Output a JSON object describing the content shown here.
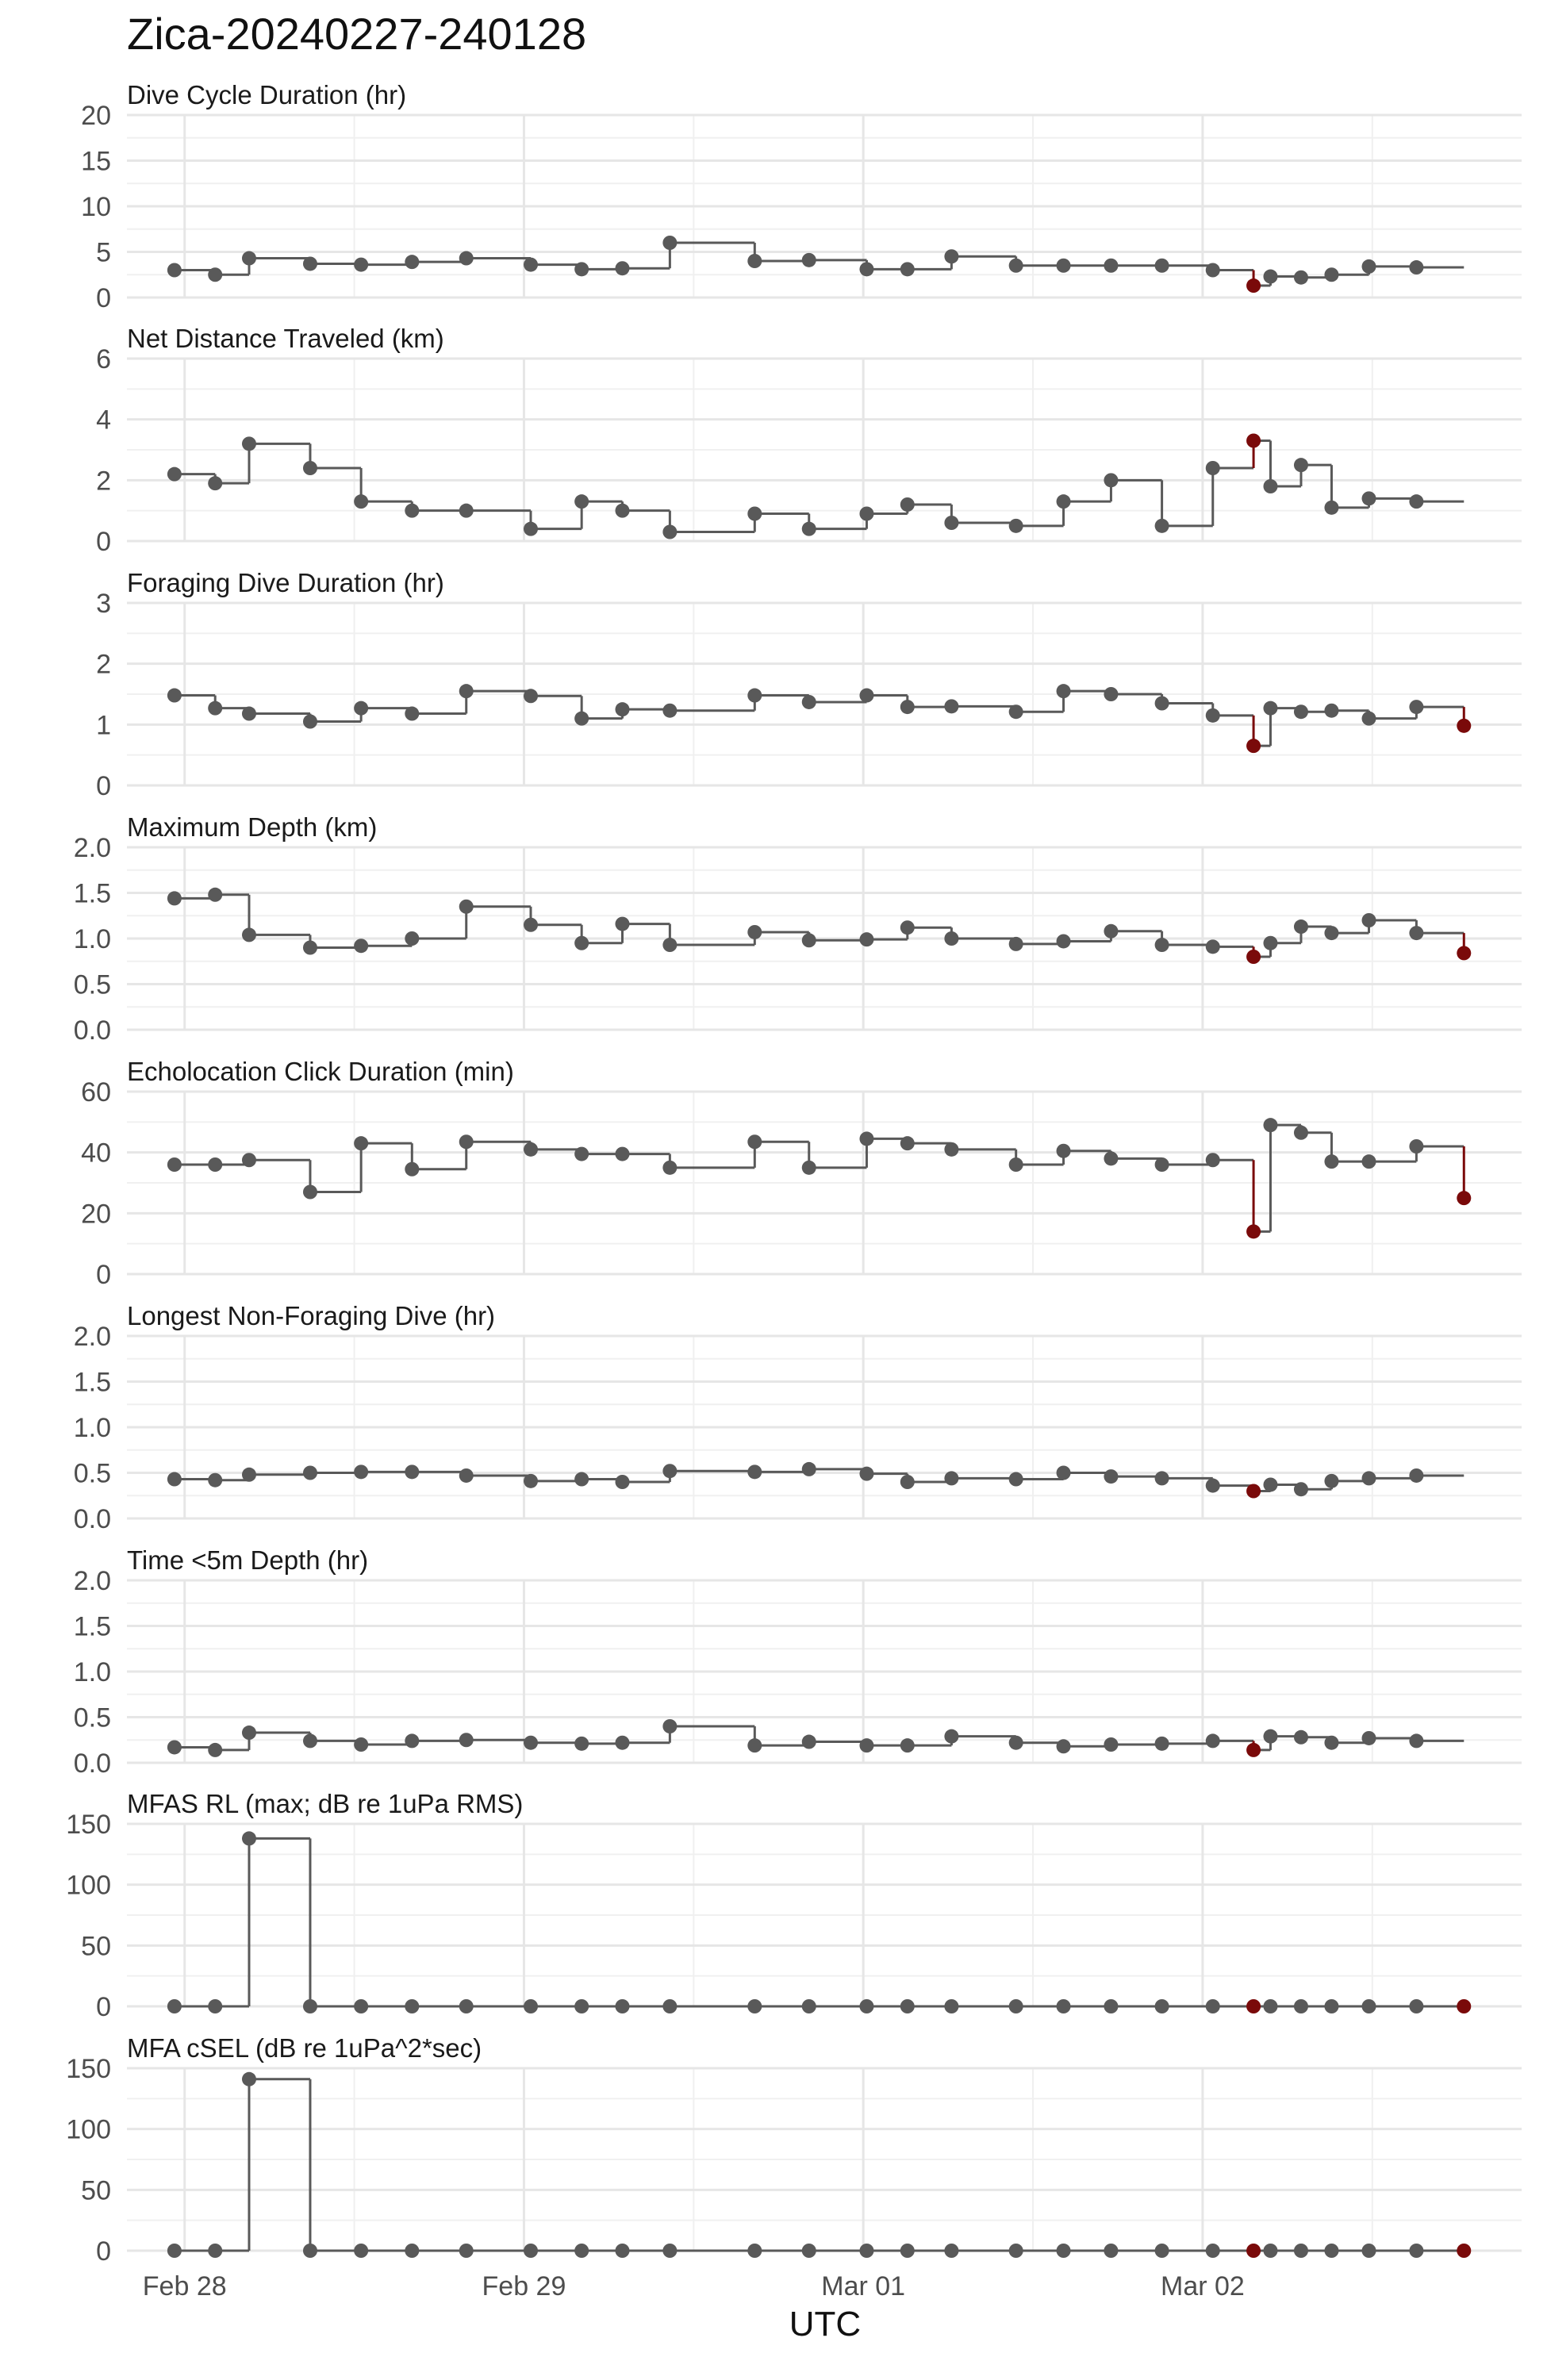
{
  "title": "Zica-20240227-240128",
  "xlabel": "UTC",
  "colors": {
    "normal": "#595959",
    "flagged": "#7a0a0a",
    "grid": "#e6e6e6",
    "text": "#4d4d4d"
  },
  "chart_data": {
    "type": "line",
    "step": true,
    "x_axis": {
      "label": "UTC",
      "ticks": [
        0,
        1,
        2,
        3
      ],
      "tick_labels": [
        "Feb 28",
        "Feb 29",
        "Mar 01",
        "Mar 02"
      ],
      "range": [
        -0.17,
        3.94
      ]
    },
    "x_days": [
      -0.03,
      0.09,
      0.19,
      0.37,
      0.52,
      0.67,
      0.83,
      1.02,
      1.17,
      1.29,
      1.43,
      1.68,
      1.84,
      2.01,
      2.13,
      2.26,
      2.45,
      2.59,
      2.73,
      2.88,
      3.03,
      3.15,
      3.2,
      3.29,
      3.38,
      3.49,
      3.63,
      3.77
    ],
    "panels": [
      {
        "title": "Dive Cycle Duration (hr)",
        "ylim": [
          0,
          20
        ],
        "yticks": [
          0,
          5,
          10,
          15,
          20
        ],
        "ytick_labels": [
          "0",
          "5",
          "10",
          "15",
          "20"
        ],
        "values": [
          3,
          2.5,
          4.3,
          3.7,
          3.6,
          3.9,
          4.3,
          3.6,
          3.1,
          3.2,
          6,
          4,
          4.1,
          3.1,
          3.1,
          4.5,
          3.5,
          3.5,
          3.5,
          3.5,
          3,
          1.3,
          2.3,
          2.2,
          2.5,
          3.4,
          3.3,
          null
        ],
        "flagged": [
          21
        ]
      },
      {
        "title": "Net Distance Traveled (km)",
        "ylim": [
          0,
          6
        ],
        "yticks": [
          0,
          2,
          4,
          6
        ],
        "ytick_labels": [
          "0",
          "2",
          "4",
          "6"
        ],
        "values": [
          2.2,
          1.9,
          3.2,
          2.4,
          1.3,
          1,
          1,
          0.4,
          1.3,
          1,
          0.3,
          0.9,
          0.4,
          0.9,
          1.2,
          0.6,
          0.5,
          1.3,
          2,
          0.5,
          2.4,
          3.3,
          1.8,
          2.5,
          1.1,
          1.4,
          1.3,
          null
        ],
        "flagged": [
          21
        ]
      },
      {
        "title": "Foraging Dive Duration (hr)",
        "ylim": [
          0,
          3
        ],
        "yticks": [
          0,
          1,
          2,
          3
        ],
        "ytick_labels": [
          "0",
          "1",
          "2",
          "3"
        ],
        "values": [
          1.48,
          1.27,
          1.18,
          1.05,
          1.27,
          1.18,
          1.55,
          1.47,
          1.1,
          1.25,
          1.23,
          1.48,
          1.37,
          1.48,
          1.29,
          1.3,
          1.21,
          1.55,
          1.5,
          1.35,
          1.15,
          0.65,
          1.27,
          1.21,
          1.23,
          1.1,
          1.29,
          0.98
        ],
        "flagged": [
          21,
          27
        ]
      },
      {
        "title": "Maximum Depth (km)",
        "ylim": [
          0,
          2
        ],
        "yticks": [
          0,
          0.5,
          1,
          1.5,
          2
        ],
        "ytick_labels": [
          "0.0",
          "0.5",
          "1.0",
          "1.5",
          "2.0"
        ],
        "values": [
          1.44,
          1.48,
          1.04,
          0.9,
          0.92,
          1,
          1.35,
          1.15,
          0.95,
          1.16,
          0.93,
          1.07,
          0.98,
          0.99,
          1.12,
          1,
          0.94,
          0.97,
          1.08,
          0.93,
          0.91,
          0.8,
          0.95,
          1.13,
          1.06,
          1.2,
          1.06,
          0.84
        ],
        "flagged": [
          21,
          27
        ]
      },
      {
        "title": "Echolocation Click Duration (min)",
        "ylim": [
          0,
          60
        ],
        "yticks": [
          0,
          20,
          40,
          60
        ],
        "ytick_labels": [
          "0",
          "20",
          "40",
          "60"
        ],
        "values": [
          36,
          36,
          37.5,
          27,
          43,
          34.5,
          43.5,
          41,
          39.5,
          39.5,
          35,
          43.5,
          35,
          44.5,
          43,
          41,
          36,
          40.5,
          38,
          36,
          37.5,
          14,
          49,
          46.5,
          37,
          37,
          42,
          25
        ],
        "flagged": [
          21,
          27
        ]
      },
      {
        "title": "Longest Non-Foraging Dive (hr)",
        "ylim": [
          0,
          2
        ],
        "yticks": [
          0,
          0.5,
          1,
          1.5,
          2
        ],
        "ytick_labels": [
          "0.0",
          "0.5",
          "1.0",
          "1.5",
          "2.0"
        ],
        "values": [
          0.43,
          0.42,
          0.48,
          0.5,
          0.51,
          0.51,
          0.47,
          0.41,
          0.43,
          0.4,
          0.52,
          0.51,
          0.54,
          0.49,
          0.4,
          0.44,
          0.43,
          0.5,
          0.46,
          0.44,
          0.36,
          0.3,
          0.37,
          0.32,
          0.41,
          0.44,
          0.47,
          null
        ],
        "flagged": [
          21
        ]
      },
      {
        "title": "Time <5m Depth (hr)",
        "ylim": [
          0,
          2
        ],
        "yticks": [
          0,
          0.5,
          1,
          1.5,
          2
        ],
        "ytick_labels": [
          "0.0",
          "0.5",
          "1.0",
          "1.5",
          "2.0"
        ],
        "values": [
          0.17,
          0.14,
          0.33,
          0.24,
          0.2,
          0.24,
          0.25,
          0.22,
          0.21,
          0.22,
          0.4,
          0.19,
          0.23,
          0.19,
          0.19,
          0.29,
          0.22,
          0.18,
          0.2,
          0.21,
          0.24,
          0.14,
          0.29,
          0.28,
          0.22,
          0.27,
          0.24,
          null
        ],
        "flagged": [
          21
        ]
      },
      {
        "title": "MFAS RL (max; dB re 1uPa RMS)",
        "ylim": [
          0,
          150
        ],
        "yticks": [
          0,
          50,
          100,
          150
        ],
        "ytick_labels": [
          "0",
          "50",
          "100",
          "150"
        ],
        "values": [
          0,
          0,
          138,
          0,
          0,
          0,
          0,
          0,
          0,
          0,
          0,
          0,
          0,
          0,
          0,
          0,
          0,
          0,
          0,
          0,
          0,
          0,
          0,
          0,
          0,
          0,
          0,
          0
        ],
        "flagged": [
          21,
          27
        ]
      },
      {
        "title": "MFA cSEL (dB re 1uPa^2*sec)",
        "ylim": [
          0,
          150
        ],
        "yticks": [
          0,
          50,
          100,
          150
        ],
        "ytick_labels": [
          "0",
          "50",
          "100",
          "150"
        ],
        "values": [
          0,
          0,
          141,
          0,
          0,
          0,
          0,
          0,
          0,
          0,
          0,
          0,
          0,
          0,
          0,
          0,
          0,
          0,
          0,
          0,
          0,
          0,
          0,
          0,
          0,
          0,
          0,
          0
        ],
        "flagged": [
          21,
          27
        ]
      }
    ]
  }
}
